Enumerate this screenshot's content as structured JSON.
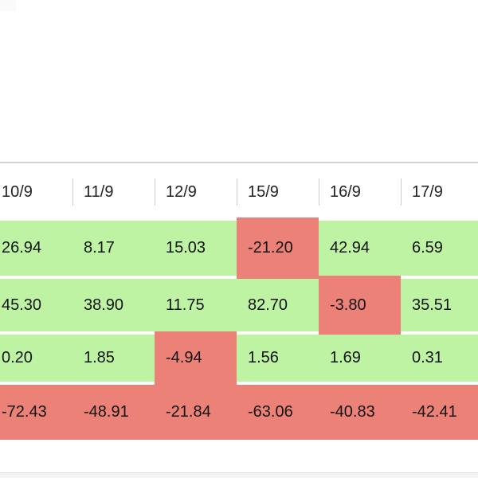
{
  "table": {
    "columns": [
      "10/9",
      "11/9",
      "12/9",
      "15/9",
      "16/9",
      "17/9"
    ],
    "rows": [
      {
        "values": [
          "26.94",
          "8.17",
          "15.03",
          "-21.20",
          "42.94",
          "6.59"
        ]
      },
      {
        "values": [
          "45.30",
          "38.90",
          "11.75",
          "82.70",
          "-3.80",
          "35.51"
        ]
      },
      {
        "values": [
          "0.20",
          "1.85",
          "-4.94",
          "1.56",
          "1.69",
          "0.31"
        ]
      },
      {
        "values": [
          "-72.43",
          "-48.91",
          "-21.84",
          "-63.06",
          "-40.83",
          "-42.41"
        ]
      }
    ],
    "colors": {
      "positive_bg": "#bdf3a3",
      "negative_bg": "#ec8277",
      "header_text": "#222222",
      "cell_text": "#141414",
      "header_separator": "#cccccc",
      "table_top_border": "#d2d2d2"
    }
  },
  "chart_data": {
    "type": "table",
    "categories": [
      "10/9",
      "11/9",
      "12/9",
      "15/9",
      "16/9",
      "17/9"
    ],
    "series": [
      {
        "name": "row-1",
        "values": [
          26.94,
          8.17,
          15.03,
          -21.2,
          42.94,
          6.59
        ]
      },
      {
        "name": "row-2",
        "values": [
          45.3,
          38.9,
          11.75,
          82.7,
          -3.8,
          35.51
        ]
      },
      {
        "name": "row-3",
        "values": [
          0.2,
          1.85,
          -4.94,
          1.56,
          1.69,
          0.31
        ]
      },
      {
        "name": "row-4",
        "values": [
          -72.43,
          -48.91,
          -21.84,
          -63.06,
          -40.83,
          -42.41
        ]
      }
    ],
    "title": "",
    "legend": "cell background green = positive value, red = negative value"
  }
}
